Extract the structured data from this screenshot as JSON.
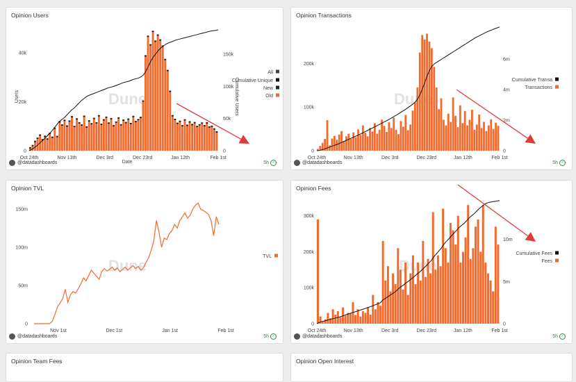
{
  "footer_user": "@datadashboards",
  "freshness": "5h",
  "watermark": "Dune",
  "colors": {
    "bar": "#f26b2e",
    "line": "#111111",
    "arrow": "#e03b3b"
  },
  "cards": [
    {
      "title": "Opinion Users"
    },
    {
      "title": "Opinion Transactions"
    },
    {
      "title": "Opinion TVL"
    },
    {
      "title": "Opinion Fees"
    },
    {
      "title": "Opinion Team Fees"
    },
    {
      "title": "Opinion Open Interest"
    }
  ],
  "chart_data": [
    {
      "type": "bar",
      "title": "Opinion Users",
      "xlabel": "Date",
      "ylabel": "Users",
      "y2label": "Cumulative Users",
      "x_ticks": [
        "Oct 24th",
        "Nov 13th",
        "Dec 3rd",
        "Dec 23rd",
        "Jan 12th",
        "Feb 1st"
      ],
      "y_ticks": [
        "0",
        "20k",
        "40k"
      ],
      "y2_ticks": [
        "0",
        "50k",
        "100k",
        "150k"
      ],
      "ylim": [
        0,
        50000
      ],
      "y2lim": [
        0,
        190000
      ],
      "legend": [
        "All",
        "Cumulative Unique",
        "New",
        "Old"
      ],
      "legend_colors": [
        "#444444",
        "#111111",
        "#222222",
        "#f26b2e"
      ],
      "series": [
        {
          "name": "Old",
          "values": [
            900,
            1800,
            3500,
            4800,
            6100,
            4200,
            5600,
            4500,
            6800,
            5200,
            8900,
            5500,
            11500,
            10200,
            12100,
            9800,
            11800,
            13600,
            9600,
            12700,
            11100,
            10200,
            13800,
            9400,
            11900,
            10700,
            12900,
            11100,
            14000,
            10500,
            12300,
            13400,
            11000,
            12800,
            9900,
            11400,
            13100,
            10300,
            12200,
            11200,
            12600,
            10800,
            13700,
            11600,
            12400,
            13300,
            20000,
            38500,
            46500,
            43000,
            48500,
            44500,
            47000,
            45000,
            42500,
            37000,
            32500,
            24000,
            14000,
            12500,
            10900,
            11700,
            9900,
            12300,
            10100,
            11500,
            10400,
            11200,
            9600,
            10300,
            11000,
            9900,
            11100,
            9400,
            9700,
            8600,
            7400
          ]
        },
        {
          "name": "Cumulative Unique",
          "values": [
            0,
            2000,
            4500,
            7500,
            11000,
            14500,
            18000,
            22000,
            26000,
            30000,
            35000,
            40000,
            45000,
            48000,
            51000,
            55000,
            59000,
            63000,
            66000,
            70000,
            74000,
            78000,
            81000,
            84000,
            86000,
            87500,
            89000,
            90500,
            92000,
            93500,
            95000,
            96500,
            98000,
            99000,
            100000,
            101500,
            103000,
            104500,
            106000,
            107000,
            108000,
            109500,
            111000,
            112000,
            113000,
            115000,
            118000,
            124000,
            132000,
            140000,
            146000,
            151000,
            156000,
            160000,
            163000,
            165500,
            167500,
            169000,
            170500,
            172000,
            173000,
            174000,
            175000,
            176000,
            177000,
            178000,
            179000,
            180000,
            181000,
            182000,
            183000,
            184000,
            185000,
            186000,
            186500,
            187000,
            188000
          ]
        }
      ]
    },
    {
      "type": "bar",
      "title": "Opinion Transactions",
      "x_ticks": [
        "Oct 24th",
        "Nov 13th",
        "Dec 3rd",
        "Dec 23rd",
        "Jan 12th",
        "Feb 1st"
      ],
      "y_ticks": [
        "0",
        "100k",
        "200k"
      ],
      "y2_ticks": [
        "0",
        "2m",
        "4m",
        "6m"
      ],
      "ylim": [
        0,
        280000
      ],
      "y2lim": [
        0,
        8000000
      ],
      "legend": [
        "Cumulative Transa",
        "Transactions"
      ],
      "legend_colors": [
        "#111111",
        "#f26b2e"
      ],
      "series": [
        {
          "name": "Transactions",
          "values": [
            4000,
            11000,
            18000,
            27000,
            70000,
            12000,
            28000,
            34000,
            25000,
            37000,
            45000,
            22000,
            33000,
            39000,
            27000,
            42000,
            31000,
            49000,
            36000,
            58000,
            41000,
            33000,
            52000,
            44000,
            63000,
            39000,
            48000,
            71000,
            57000,
            43000,
            65000,
            52000,
            76000,
            48000,
            38000,
            68000,
            55000,
            82000,
            47000,
            60000,
            92000,
            110000,
            145000,
            225000,
            265000,
            255000,
            268000,
            250000,
            235000,
            192000,
            145000,
            95000,
            120000,
            71000,
            58000,
            85000,
            66000,
            122000,
            80000,
            54000,
            104000,
            63000,
            91000,
            58000,
            71000,
            94000,
            48000,
            60000,
            83000,
            52000,
            66000,
            45000,
            58000,
            72000,
            50000,
            64000,
            57000
          ]
        },
        {
          "name": "Cumulative Transa",
          "values": [
            0,
            20000,
            60000,
            100000,
            160000,
            220000,
            280000,
            330000,
            390000,
            450000,
            520000,
            590000,
            660000,
            730000,
            800000,
            870000,
            940000,
            1010000,
            1080000,
            1160000,
            1240000,
            1320000,
            1400000,
            1480000,
            1560000,
            1640000,
            1720000,
            1800000,
            1880000,
            1960000,
            2050000,
            2140000,
            2230000,
            2320000,
            2420000,
            2520000,
            2620000,
            2720000,
            2830000,
            2940000,
            3060000,
            3200000,
            3400000,
            3700000,
            4100000,
            4500000,
            4950000,
            5300000,
            5550000,
            5700000,
            5800000,
            5900000,
            6000000,
            6100000,
            6200000,
            6300000,
            6400000,
            6500000,
            6600000,
            6700000,
            6800000,
            6900000,
            7000000,
            7100000,
            7200000,
            7300000,
            7400000,
            7480000,
            7560000,
            7640000,
            7720000,
            7800000,
            7860000,
            7920000,
            7980000,
            8040000,
            8100000
          ]
        }
      ]
    },
    {
      "type": "line",
      "title": "Opinion TVL",
      "x_ticks": [
        "Nov 1st",
        "Dec 1st",
        "Jan 1st",
        "Feb 1st"
      ],
      "y_ticks": [
        "0",
        "50m",
        "100m",
        "150m"
      ],
      "ylim": [
        0,
        160000000
      ],
      "legend": [
        "TVL"
      ],
      "legend_colors": [
        "#f26b2e"
      ],
      "series": [
        {
          "name": "TVL",
          "values": [
            0,
            0,
            0,
            0,
            0,
            0,
            0,
            3000000,
            12000000,
            22000000,
            27000000,
            33000000,
            45000000,
            28000000,
            38000000,
            42000000,
            40000000,
            46000000,
            52000000,
            60000000,
            56000000,
            63000000,
            70000000,
            66000000,
            62000000,
            58000000,
            68000000,
            72000000,
            69000000,
            71000000,
            74000000,
            70000000,
            73000000,
            68000000,
            71000000,
            74000000,
            70000000,
            73000000,
            76000000,
            72000000,
            75000000,
            70000000,
            73000000,
            80000000,
            86000000,
            96000000,
            108000000,
            135000000,
            120000000,
            100000000,
            112000000,
            110000000,
            118000000,
            122000000,
            130000000,
            125000000,
            135000000,
            140000000,
            145000000,
            138000000,
            142000000,
            150000000,
            155000000,
            158000000,
            150000000,
            148000000,
            146000000,
            143000000,
            135000000,
            115000000,
            140000000,
            130000000
          ]
        }
      ]
    },
    {
      "type": "bar",
      "title": "Opinion Fees",
      "x_ticks": [
        "Oct 24th",
        "Nov 13th",
        "Dec 3rd",
        "Dec 23rd",
        "Jan 12th",
        "Feb 1st"
      ],
      "y_ticks": [
        "0",
        "100k",
        "200k",
        "300k"
      ],
      "y2_ticks": [
        "0",
        "5m",
        "10m"
      ],
      "ylim": [
        0,
        340000
      ],
      "y2lim": [
        0,
        14500000
      ],
      "legend": [
        "Cumulative Fees",
        "Fees"
      ],
      "legend_colors": [
        "#111111",
        "#f26b2e"
      ],
      "series": [
        {
          "name": "Fees",
          "values": [
            290000,
            20000,
            5000,
            12000,
            30000,
            15000,
            40000,
            25000,
            35000,
            18000,
            45000,
            22000,
            30000,
            28000,
            60000,
            24000,
            40000,
            20000,
            35000,
            30000,
            45000,
            25000,
            80000,
            40000,
            60000,
            50000,
            230000,
            120000,
            160000,
            90000,
            140000,
            110000,
            210000,
            150000,
            95000,
            170000,
            80000,
            140000,
            190000,
            110000,
            170000,
            120000,
            230000,
            130000,
            180000,
            140000,
            310000,
            150000,
            190000,
            160000,
            320000,
            210000,
            170000,
            280000,
            260000,
            220000,
            300000,
            170000,
            200000,
            240000,
            330000,
            180000,
            210000,
            270000,
            290000,
            200000,
            330000,
            170000,
            140000,
            120000,
            90000,
            270000,
            220000
          ]
        },
        {
          "name": "Cumulative Fees",
          "values": [
            0,
            150000,
            250000,
            320000,
            400000,
            480000,
            560000,
            640000,
            720000,
            800000,
            900000,
            1000000,
            1100000,
            1200000,
            1300000,
            1400000,
            1500000,
            1600000,
            1700000,
            1800000,
            1900000,
            2000000,
            2120000,
            2240000,
            2360000,
            2480000,
            2800000,
            3000000,
            3200000,
            3400000,
            3600000,
            3800000,
            4100000,
            4350000,
            4550000,
            4800000,
            5000000,
            5250000,
            5500000,
            5750000,
            6000000,
            6250000,
            6550000,
            6850000,
            7150000,
            7450000,
            7900000,
            8250000,
            8600000,
            8950000,
            9400000,
            9750000,
            10050000,
            10400000,
            10750000,
            11050000,
            11400000,
            11650000,
            11900000,
            12200000,
            12550000,
            12800000,
            13050000,
            13350000,
            13650000,
            13900000,
            14150000,
            14300000,
            14400000,
            14450000,
            14500000,
            14550000,
            14600000
          ]
        }
      ]
    }
  ]
}
